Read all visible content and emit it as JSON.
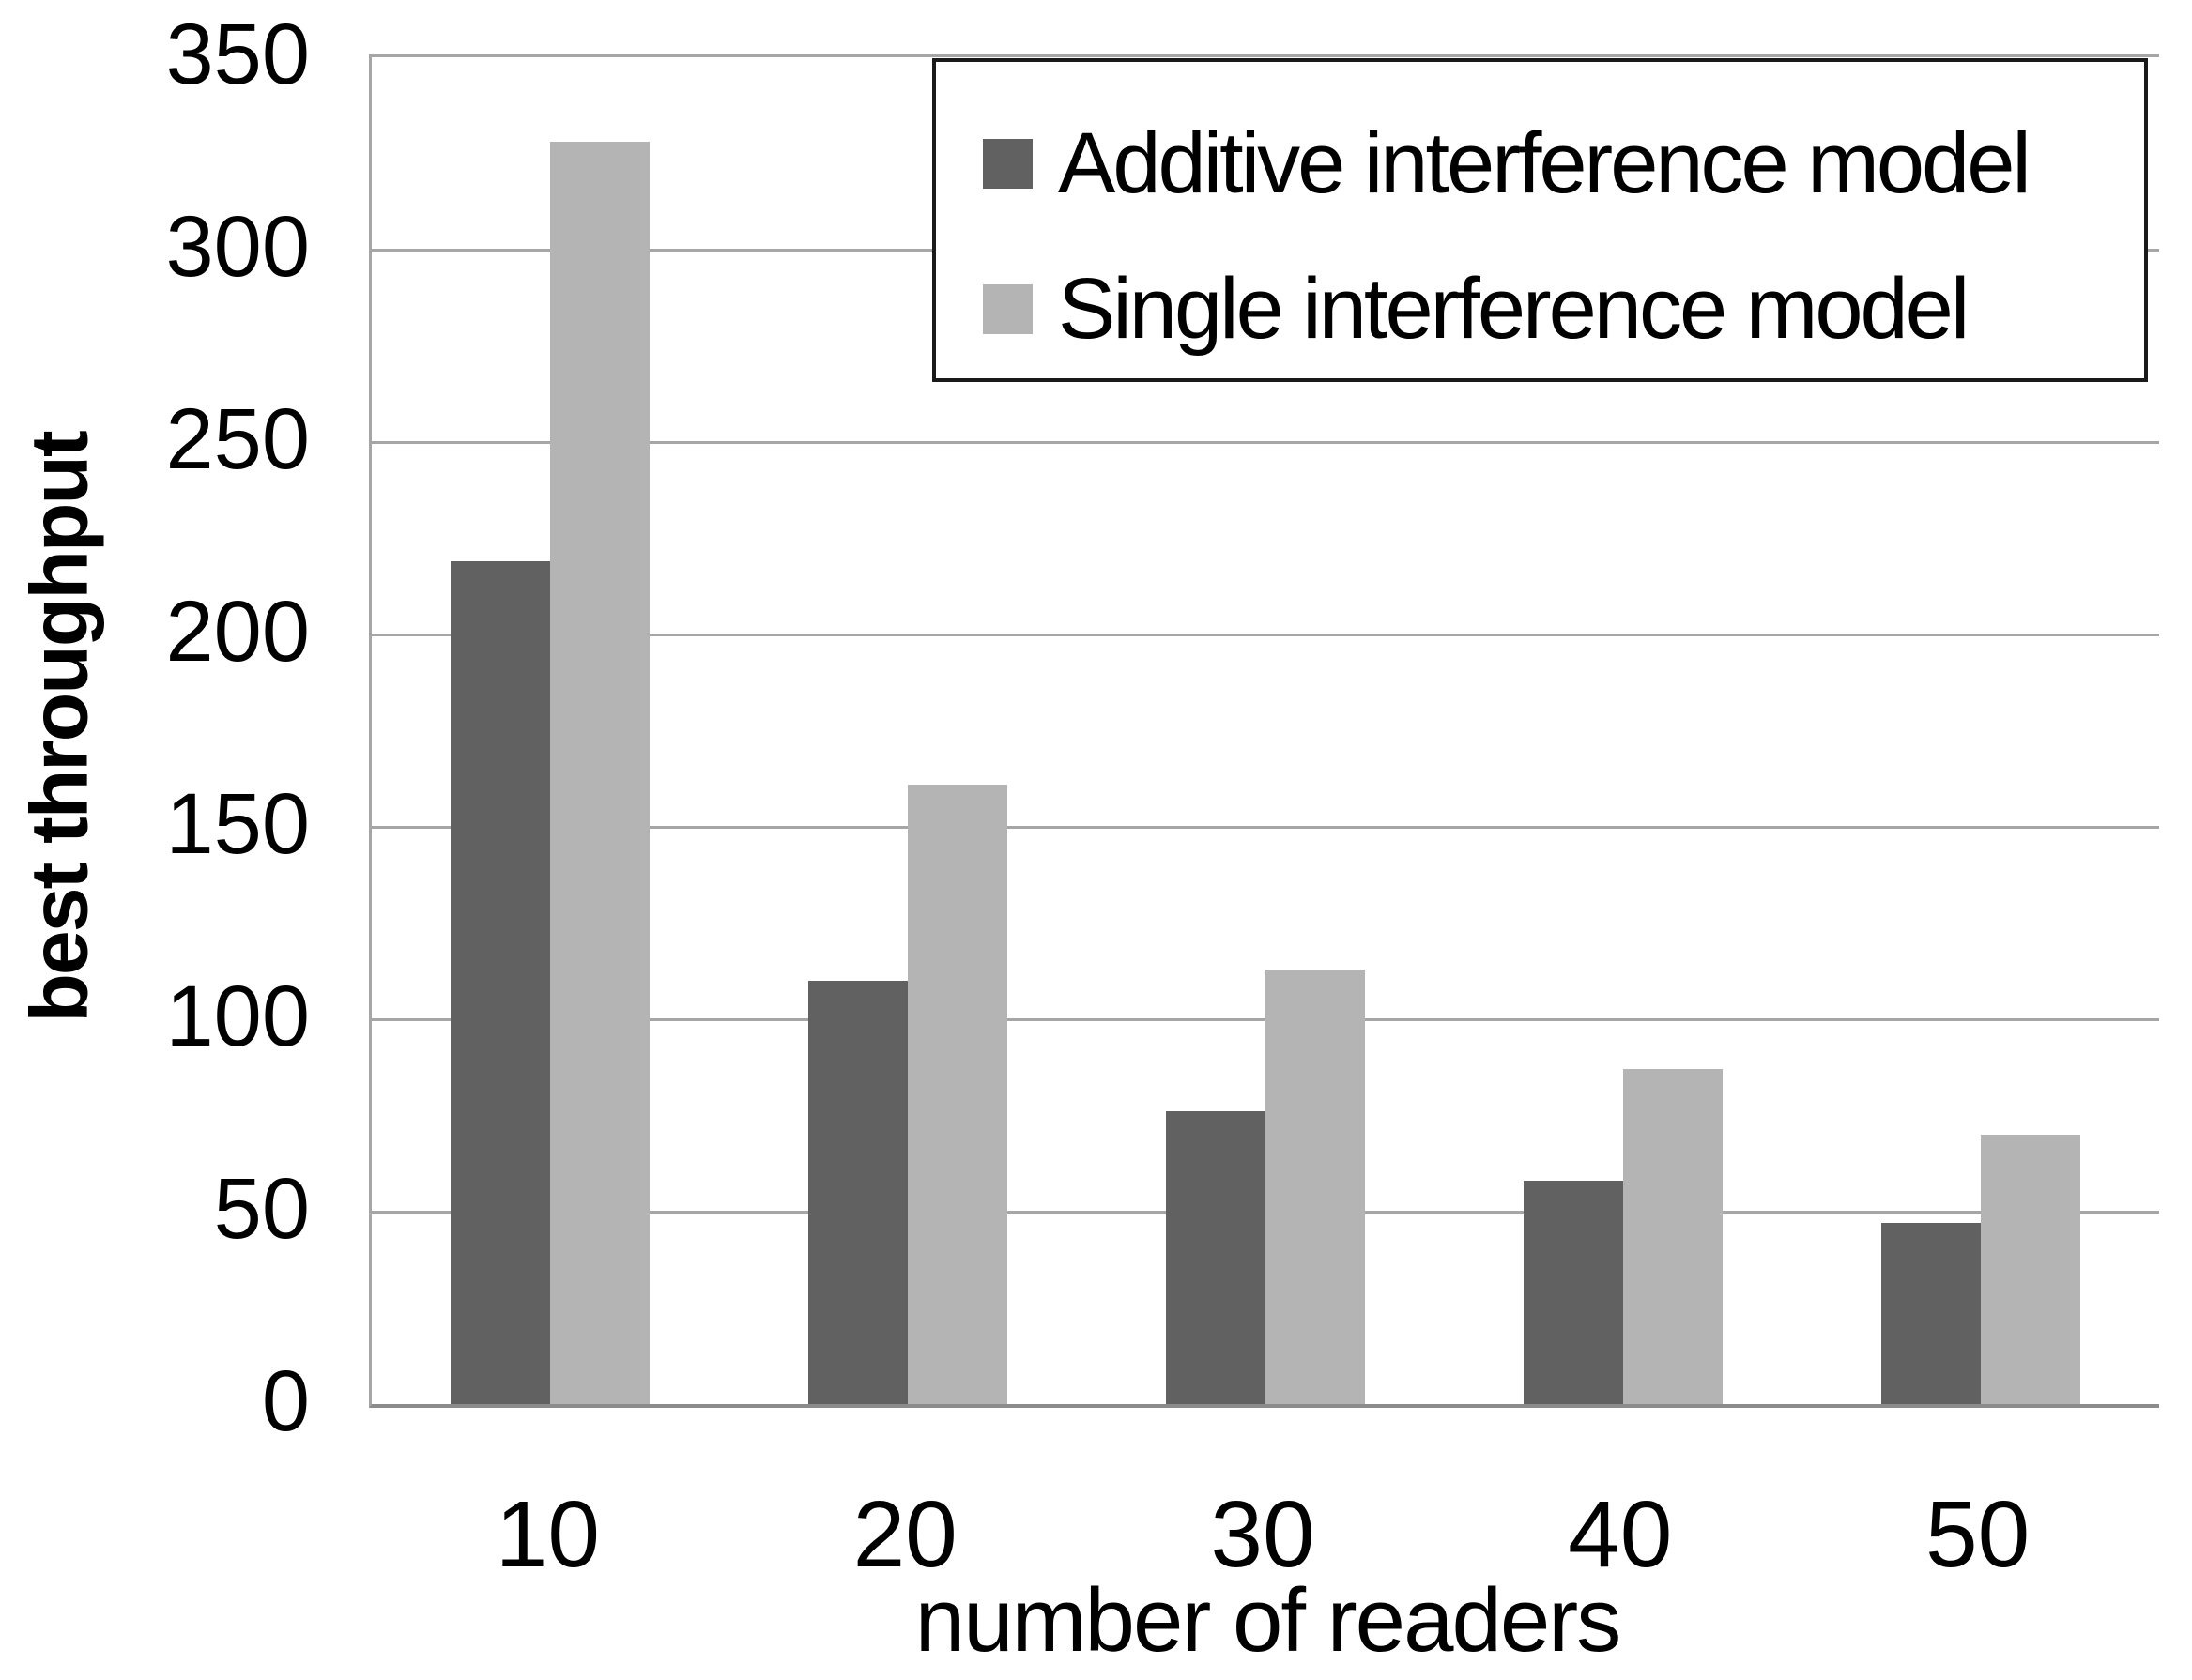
{
  "chart_data": {
    "type": "bar",
    "title": "",
    "xlabel": "number of readers",
    "ylabel": "best throughput",
    "categories": [
      "10",
      "20",
      "30",
      "40",
      "50"
    ],
    "series": [
      {
        "name": "Additive interference model",
        "color": "#616161",
        "values": [
          219,
          110,
          76,
          58,
          47
        ]
      },
      {
        "name": "Single interference model",
        "color": "#b4b4b4",
        "values": [
          328,
          161,
          113,
          87,
          70
        ]
      }
    ],
    "ylim": [
      0,
      350
    ],
    "yticks": [
      0,
      50,
      100,
      150,
      200,
      250,
      300,
      350
    ],
    "grid": true,
    "legend_position": "top-right",
    "colors": {
      "gridline": "#a6a6a6",
      "axis_line": "#8c8c8c",
      "legend_border": "#1a1a1a",
      "text": "#000000"
    }
  }
}
